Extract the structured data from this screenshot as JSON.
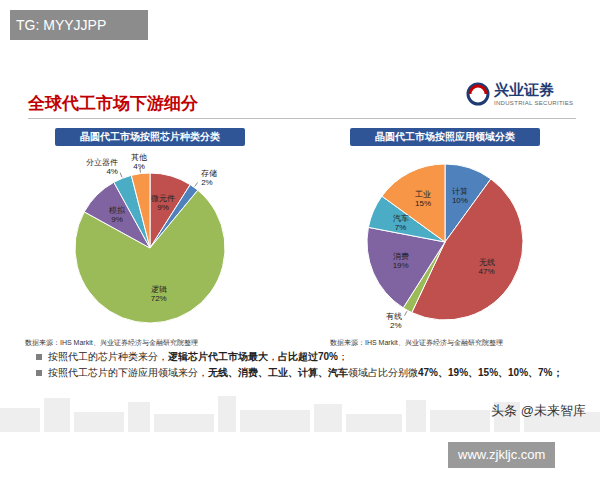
{
  "header": {
    "watermark": "TG: MYYJJPP",
    "title": "全球代工市场下游细分",
    "logo": {
      "name": "兴业证券",
      "subtitle": "INDUSTRIAL SECURITIES"
    }
  },
  "chart_data": [
    {
      "type": "pie",
      "title": "晶圆代工市场按照芯片种类分类",
      "caption": "数据来源：IHS Markit、兴业证券经济与金融研究院整理",
      "categories": [
        "微元件",
        "存储",
        "逻辑",
        "模拟",
        "分立器件",
        "其他"
      ],
      "values": [
        9,
        2,
        72,
        9,
        4,
        4
      ],
      "value_labels": [
        "9%",
        "2%",
        "72%",
        "9%",
        "4%",
        "4%"
      ],
      "colors": [
        "#c0504d",
        "#4f81bd",
        "#9bbb59",
        "#8064a2",
        "#4bacc6",
        "#f79646"
      ],
      "data_labels": true
    },
    {
      "type": "pie",
      "title": "晶圆代工市场按照应用领域分类",
      "caption": "数据来源：IHS Markit、兴业证券经济与金融研究院整理",
      "categories": [
        "计算",
        "无线",
        "有线",
        "消费",
        "汽车",
        "工业"
      ],
      "values": [
        10,
        47,
        2,
        19,
        7,
        15
      ],
      "value_labels": [
        "10%",
        "47%",
        "2%",
        "19%",
        "7%",
        "15%"
      ],
      "colors": [
        "#4f81bd",
        "#c0504d",
        "#9bbb59",
        "#8064a2",
        "#4bacc6",
        "#f79646"
      ],
      "data_labels": true
    }
  ],
  "bullets": [
    [
      {
        "text": "按照代工的芯片种类来分，"
      },
      {
        "text": "逻辑芯片代工市场最大",
        "bold": true
      },
      {
        "text": "，"
      },
      {
        "text": "占比超过70%",
        "bold": true
      },
      {
        "text": "；"
      }
    ],
    [
      {
        "text": "按照代工芯片的下游应用领域来分，"
      },
      {
        "text": "无线、消费、工业、计算、汽车",
        "bold": true
      },
      {
        "text": "领域占比分别微"
      },
      {
        "text": "47%、19%、15%、10%、7%；",
        "bold": true
      }
    ]
  ],
  "footer": {
    "watermark": "头条 @未来智库",
    "url": "www.zjkljc.com"
  }
}
